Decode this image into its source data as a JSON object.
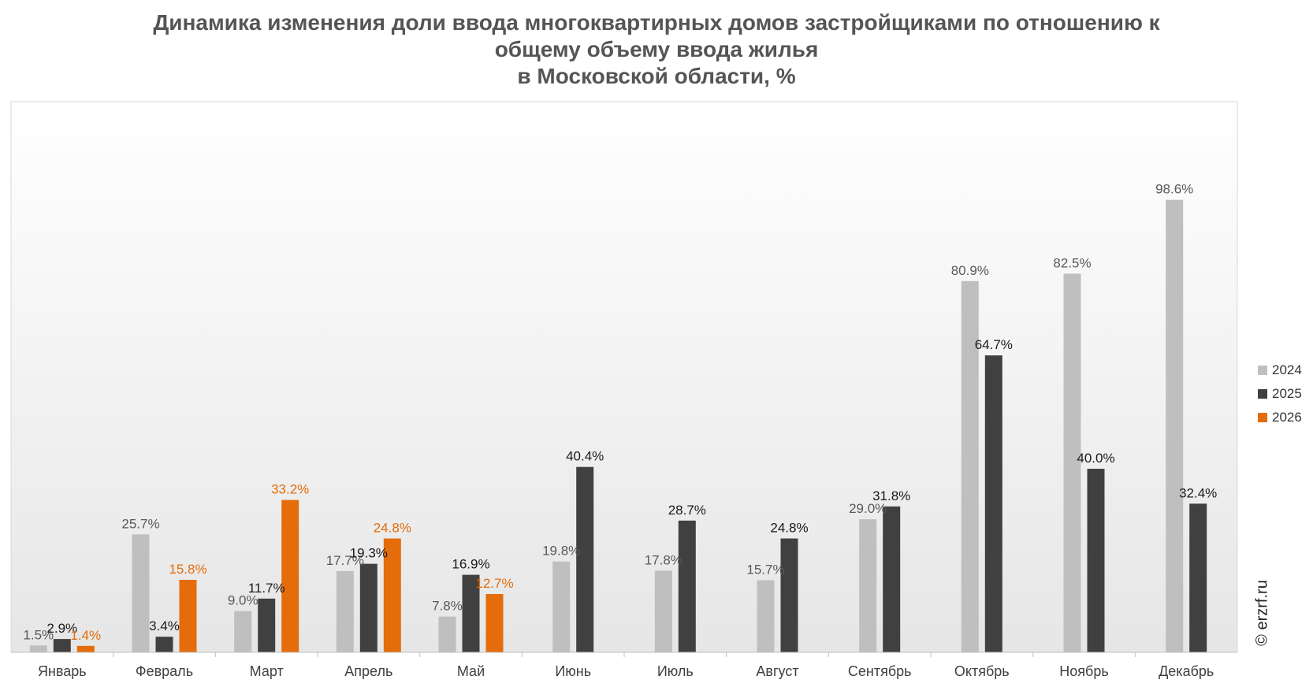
{
  "title_lines": [
    "Динамика изменения доли ввода многоквартирных домов застройщиками по отношению к",
    "общему объему ввода жилья",
    "в Московской области, %"
  ],
  "watermark": "© erzrf.ru",
  "colors": {
    "series_2024": "#bfbfbf",
    "series_2025": "#404040",
    "series_2026": "#e46c0a",
    "label_2024": "#595959",
    "label_2025": "#1a1a1a",
    "label_2026": "#e46c0a"
  },
  "chart_data": {
    "type": "bar",
    "title": "Динамика изменения доли ввода многоквартирных домов застройщиками по отношению к общему объему ввода жилья в Московской области, %",
    "categories": [
      "Январь",
      "Февраль",
      "Март",
      "Апрель",
      "Май",
      "Июнь",
      "Июль",
      "Август",
      "Сентябрь",
      "Октябрь",
      "Ноябрь",
      "Декабрь"
    ],
    "series": [
      {
        "name": "2024",
        "values": [
          1.5,
          25.7,
          9.0,
          17.7,
          7.8,
          19.8,
          17.8,
          15.7,
          29.0,
          80.9,
          82.5,
          98.6
        ]
      },
      {
        "name": "2025",
        "values": [
          2.9,
          3.4,
          11.7,
          19.3,
          16.9,
          40.4,
          28.7,
          24.8,
          31.8,
          64.7,
          40.0,
          32.4
        ]
      },
      {
        "name": "2026",
        "values": [
          1.4,
          15.8,
          33.2,
          24.8,
          12.7,
          null,
          null,
          null,
          null,
          null,
          null,
          null
        ]
      }
    ],
    "data_labels": [
      [
        "1.5%",
        "25.7%",
        "9.0%",
        "17.7%",
        "7.8%",
        "19.8%",
        "17.8%",
        "15.7%",
        "29.0%",
        "80.9%",
        "82.5%",
        "98.6%"
      ],
      [
        "2.9%",
        "3.4%",
        "11.7%",
        "19.3%",
        "16.9%",
        "40.4%",
        "28.7%",
        "24.8%",
        "31.8%",
        "64.7%",
        "40.0%",
        "32.4%"
      ],
      [
        "1.4%",
        "15.8%",
        "33.2%",
        "24.8%",
        "12.7%",
        null,
        null,
        null,
        null,
        null,
        null,
        null
      ]
    ],
    "xlabel": "",
    "ylabel": "",
    "ylim": [
      0,
      120
    ],
    "grid": false,
    "legend": "right"
  }
}
